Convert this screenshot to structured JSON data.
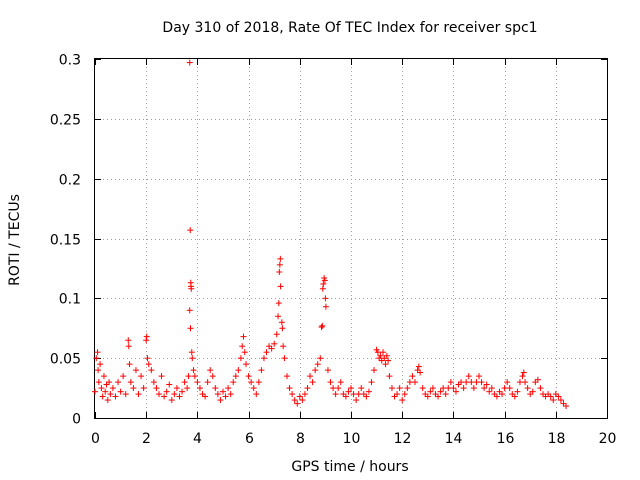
{
  "chart_data": {
    "type": "scatter",
    "title": "Day 310 of 2018, Rate Of TEC Index for receiver spc1",
    "xlabel": "GPS time / hours",
    "ylabel": "ROTI / TECUs",
    "xlim": [
      0,
      20
    ],
    "ylim": [
      0,
      0.3
    ],
    "xticks": [
      0,
      2,
      4,
      6,
      8,
      10,
      12,
      14,
      16,
      18,
      20
    ],
    "xtick_labels": [
      "0",
      "2",
      "4",
      "6",
      "8",
      "10",
      "12",
      "14",
      "16",
      "18",
      "20"
    ],
    "yticks": [
      0,
      0.05,
      0.1,
      0.15,
      0.2,
      0.25,
      0.3
    ],
    "ytick_labels": [
      "0",
      "0.05",
      "0.1",
      "0.15",
      "0.2",
      "0.25",
      "0.3"
    ],
    "grid": true,
    "marker": "plus",
    "color": "#ff0000",
    "series": [
      {
        "name": "ROTI",
        "points": [
          [
            0.0,
            0.022
          ],
          [
            0.05,
            0.05
          ],
          [
            0.1,
            0.055
          ],
          [
            0.12,
            0.04
          ],
          [
            0.15,
            0.03
          ],
          [
            0.2,
            0.045
          ],
          [
            0.25,
            0.025
          ],
          [
            0.3,
            0.018
          ],
          [
            0.35,
            0.035
          ],
          [
            0.4,
            0.022
          ],
          [
            0.45,
            0.028
          ],
          [
            0.5,
            0.015
          ],
          [
            0.55,
            0.03
          ],
          [
            0.6,
            0.02
          ],
          [
            0.7,
            0.025
          ],
          [
            0.8,
            0.018
          ],
          [
            0.9,
            0.03
          ],
          [
            1.0,
            0.022
          ],
          [
            1.1,
            0.035
          ],
          [
            1.2,
            0.02
          ],
          [
            1.3,
            0.065
          ],
          [
            1.32,
            0.06
          ],
          [
            1.35,
            0.045
          ],
          [
            1.4,
            0.03
          ],
          [
            1.5,
            0.025
          ],
          [
            1.6,
            0.04
          ],
          [
            1.7,
            0.02
          ],
          [
            1.8,
            0.035
          ],
          [
            1.9,
            0.025
          ],
          [
            2.0,
            0.065
          ],
          [
            2.02,
            0.068
          ],
          [
            2.05,
            0.05
          ],
          [
            2.1,
            0.045
          ],
          [
            2.2,
            0.04
          ],
          [
            2.3,
            0.03
          ],
          [
            2.4,
            0.025
          ],
          [
            2.5,
            0.02
          ],
          [
            2.6,
            0.035
          ],
          [
            2.7,
            0.018
          ],
          [
            2.8,
            0.022
          ],
          [
            2.9,
            0.028
          ],
          [
            3.0,
            0.015
          ],
          [
            3.1,
            0.02
          ],
          [
            3.2,
            0.025
          ],
          [
            3.3,
            0.018
          ],
          [
            3.4,
            0.022
          ],
          [
            3.5,
            0.03
          ],
          [
            3.6,
            0.025
          ],
          [
            3.65,
            0.035
          ],
          [
            3.7,
            0.297
          ],
          [
            3.72,
            0.157
          ],
          [
            3.74,
            0.113
          ],
          [
            3.75,
            0.11
          ],
          [
            3.76,
            0.108
          ],
          [
            3.7,
            0.09
          ],
          [
            3.73,
            0.075
          ],
          [
            3.78,
            0.055
          ],
          [
            3.8,
            0.05
          ],
          [
            3.85,
            0.04
          ],
          [
            3.9,
            0.035
          ],
          [
            4.0,
            0.03
          ],
          [
            4.1,
            0.025
          ],
          [
            4.2,
            0.02
          ],
          [
            4.3,
            0.018
          ],
          [
            4.4,
            0.03
          ],
          [
            4.5,
            0.04
          ],
          [
            4.6,
            0.035
          ],
          [
            4.7,
            0.025
          ],
          [
            4.8,
            0.02
          ],
          [
            4.9,
            0.015
          ],
          [
            5.0,
            0.022
          ],
          [
            5.1,
            0.018
          ],
          [
            5.2,
            0.025
          ],
          [
            5.3,
            0.02
          ],
          [
            5.4,
            0.03
          ],
          [
            5.5,
            0.035
          ],
          [
            5.6,
            0.04
          ],
          [
            5.7,
            0.05
          ],
          [
            5.75,
            0.06
          ],
          [
            5.8,
            0.068
          ],
          [
            5.85,
            0.055
          ],
          [
            5.9,
            0.045
          ],
          [
            6.0,
            0.035
          ],
          [
            6.1,
            0.03
          ],
          [
            6.2,
            0.025
          ],
          [
            6.3,
            0.02
          ],
          [
            6.4,
            0.03
          ],
          [
            6.5,
            0.04
          ],
          [
            6.6,
            0.05
          ],
          [
            6.7,
            0.055
          ],
          [
            6.8,
            0.06
          ],
          [
            6.9,
            0.058
          ],
          [
            7.0,
            0.062
          ],
          [
            7.1,
            0.07
          ],
          [
            7.15,
            0.085
          ],
          [
            7.18,
            0.096
          ],
          [
            7.2,
            0.122
          ],
          [
            7.22,
            0.128
          ],
          [
            7.24,
            0.133
          ],
          [
            7.25,
            0.11
          ],
          [
            7.3,
            0.08
          ],
          [
            7.32,
            0.075
          ],
          [
            7.35,
            0.06
          ],
          [
            7.4,
            0.05
          ],
          [
            7.5,
            0.035
          ],
          [
            7.6,
            0.025
          ],
          [
            7.7,
            0.02
          ],
          [
            7.8,
            0.015
          ],
          [
            7.9,
            0.012
          ],
          [
            8.0,
            0.018
          ],
          [
            8.1,
            0.015
          ],
          [
            8.2,
            0.02
          ],
          [
            8.3,
            0.025
          ],
          [
            8.4,
            0.035
          ],
          [
            8.5,
            0.03
          ],
          [
            8.6,
            0.04
          ],
          [
            8.7,
            0.045
          ],
          [
            8.8,
            0.05
          ],
          [
            8.85,
            0.076
          ],
          [
            8.88,
            0.077
          ],
          [
            8.9,
            0.108
          ],
          [
            8.92,
            0.112
          ],
          [
            8.95,
            0.117
          ],
          [
            8.98,
            0.115
          ],
          [
            9.0,
            0.1
          ],
          [
            9.02,
            0.093
          ],
          [
            9.1,
            0.04
          ],
          [
            9.2,
            0.03
          ],
          [
            9.3,
            0.025
          ],
          [
            9.4,
            0.02
          ],
          [
            9.5,
            0.025
          ],
          [
            9.6,
            0.03
          ],
          [
            9.7,
            0.02
          ],
          [
            9.8,
            0.018
          ],
          [
            9.9,
            0.022
          ],
          [
            10.0,
            0.025
          ],
          [
            10.1,
            0.02
          ],
          [
            10.2,
            0.015
          ],
          [
            10.3,
            0.02
          ],
          [
            10.4,
            0.025
          ],
          [
            10.5,
            0.02
          ],
          [
            10.6,
            0.018
          ],
          [
            10.7,
            0.022
          ],
          [
            10.8,
            0.03
          ],
          [
            10.9,
            0.04
          ],
          [
            11.0,
            0.057
          ],
          [
            11.05,
            0.055
          ],
          [
            11.1,
            0.05
          ],
          [
            11.15,
            0.052
          ],
          [
            11.2,
            0.048
          ],
          [
            11.25,
            0.055
          ],
          [
            11.3,
            0.05
          ],
          [
            11.35,
            0.045
          ],
          [
            11.4,
            0.052
          ],
          [
            11.45,
            0.048
          ],
          [
            11.5,
            0.035
          ],
          [
            11.6,
            0.025
          ],
          [
            11.7,
            0.018
          ],
          [
            11.8,
            0.02
          ],
          [
            11.9,
            0.025
          ],
          [
            12.0,
            0.015
          ],
          [
            12.1,
            0.02
          ],
          [
            12.2,
            0.025
          ],
          [
            12.3,
            0.03
          ],
          [
            12.4,
            0.035
          ],
          [
            12.5,
            0.03
          ],
          [
            12.6,
            0.04
          ],
          [
            12.65,
            0.043
          ],
          [
            12.7,
            0.038
          ],
          [
            12.8,
            0.025
          ],
          [
            12.9,
            0.02
          ],
          [
            13.0,
            0.018
          ],
          [
            13.1,
            0.022
          ],
          [
            13.2,
            0.025
          ],
          [
            13.3,
            0.02
          ],
          [
            13.4,
            0.018
          ],
          [
            13.5,
            0.022
          ],
          [
            13.6,
            0.025
          ],
          [
            13.7,
            0.02
          ],
          [
            13.8,
            0.025
          ],
          [
            13.9,
            0.03
          ],
          [
            14.0,
            0.025
          ],
          [
            14.1,
            0.022
          ],
          [
            14.2,
            0.028
          ],
          [
            14.3,
            0.03
          ],
          [
            14.4,
            0.025
          ],
          [
            14.5,
            0.03
          ],
          [
            14.6,
            0.035
          ],
          [
            14.7,
            0.03
          ],
          [
            14.8,
            0.025
          ],
          [
            14.9,
            0.03
          ],
          [
            15.0,
            0.035
          ],
          [
            15.1,
            0.03
          ],
          [
            15.2,
            0.025
          ],
          [
            15.3,
            0.028
          ],
          [
            15.4,
            0.022
          ],
          [
            15.5,
            0.025
          ],
          [
            15.6,
            0.02
          ],
          [
            15.7,
            0.018
          ],
          [
            15.8,
            0.022
          ],
          [
            15.9,
            0.02
          ],
          [
            16.0,
            0.025
          ],
          [
            16.1,
            0.03
          ],
          [
            16.2,
            0.025
          ],
          [
            16.3,
            0.02
          ],
          [
            16.4,
            0.018
          ],
          [
            16.5,
            0.022
          ],
          [
            16.6,
            0.03
          ],
          [
            16.7,
            0.035
          ],
          [
            16.75,
            0.038
          ],
          [
            16.8,
            0.03
          ],
          [
            16.9,
            0.025
          ],
          [
            17.0,
            0.02
          ],
          [
            17.1,
            0.022
          ],
          [
            17.2,
            0.03
          ],
          [
            17.3,
            0.032
          ],
          [
            17.4,
            0.025
          ],
          [
            17.5,
            0.02
          ],
          [
            17.6,
            0.018
          ],
          [
            17.7,
            0.02
          ],
          [
            17.8,
            0.018
          ],
          [
            17.9,
            0.015
          ],
          [
            18.0,
            0.02
          ],
          [
            18.1,
            0.018
          ],
          [
            18.2,
            0.015
          ],
          [
            18.3,
            0.012
          ],
          [
            18.4,
            0.01
          ]
        ]
      }
    ]
  }
}
